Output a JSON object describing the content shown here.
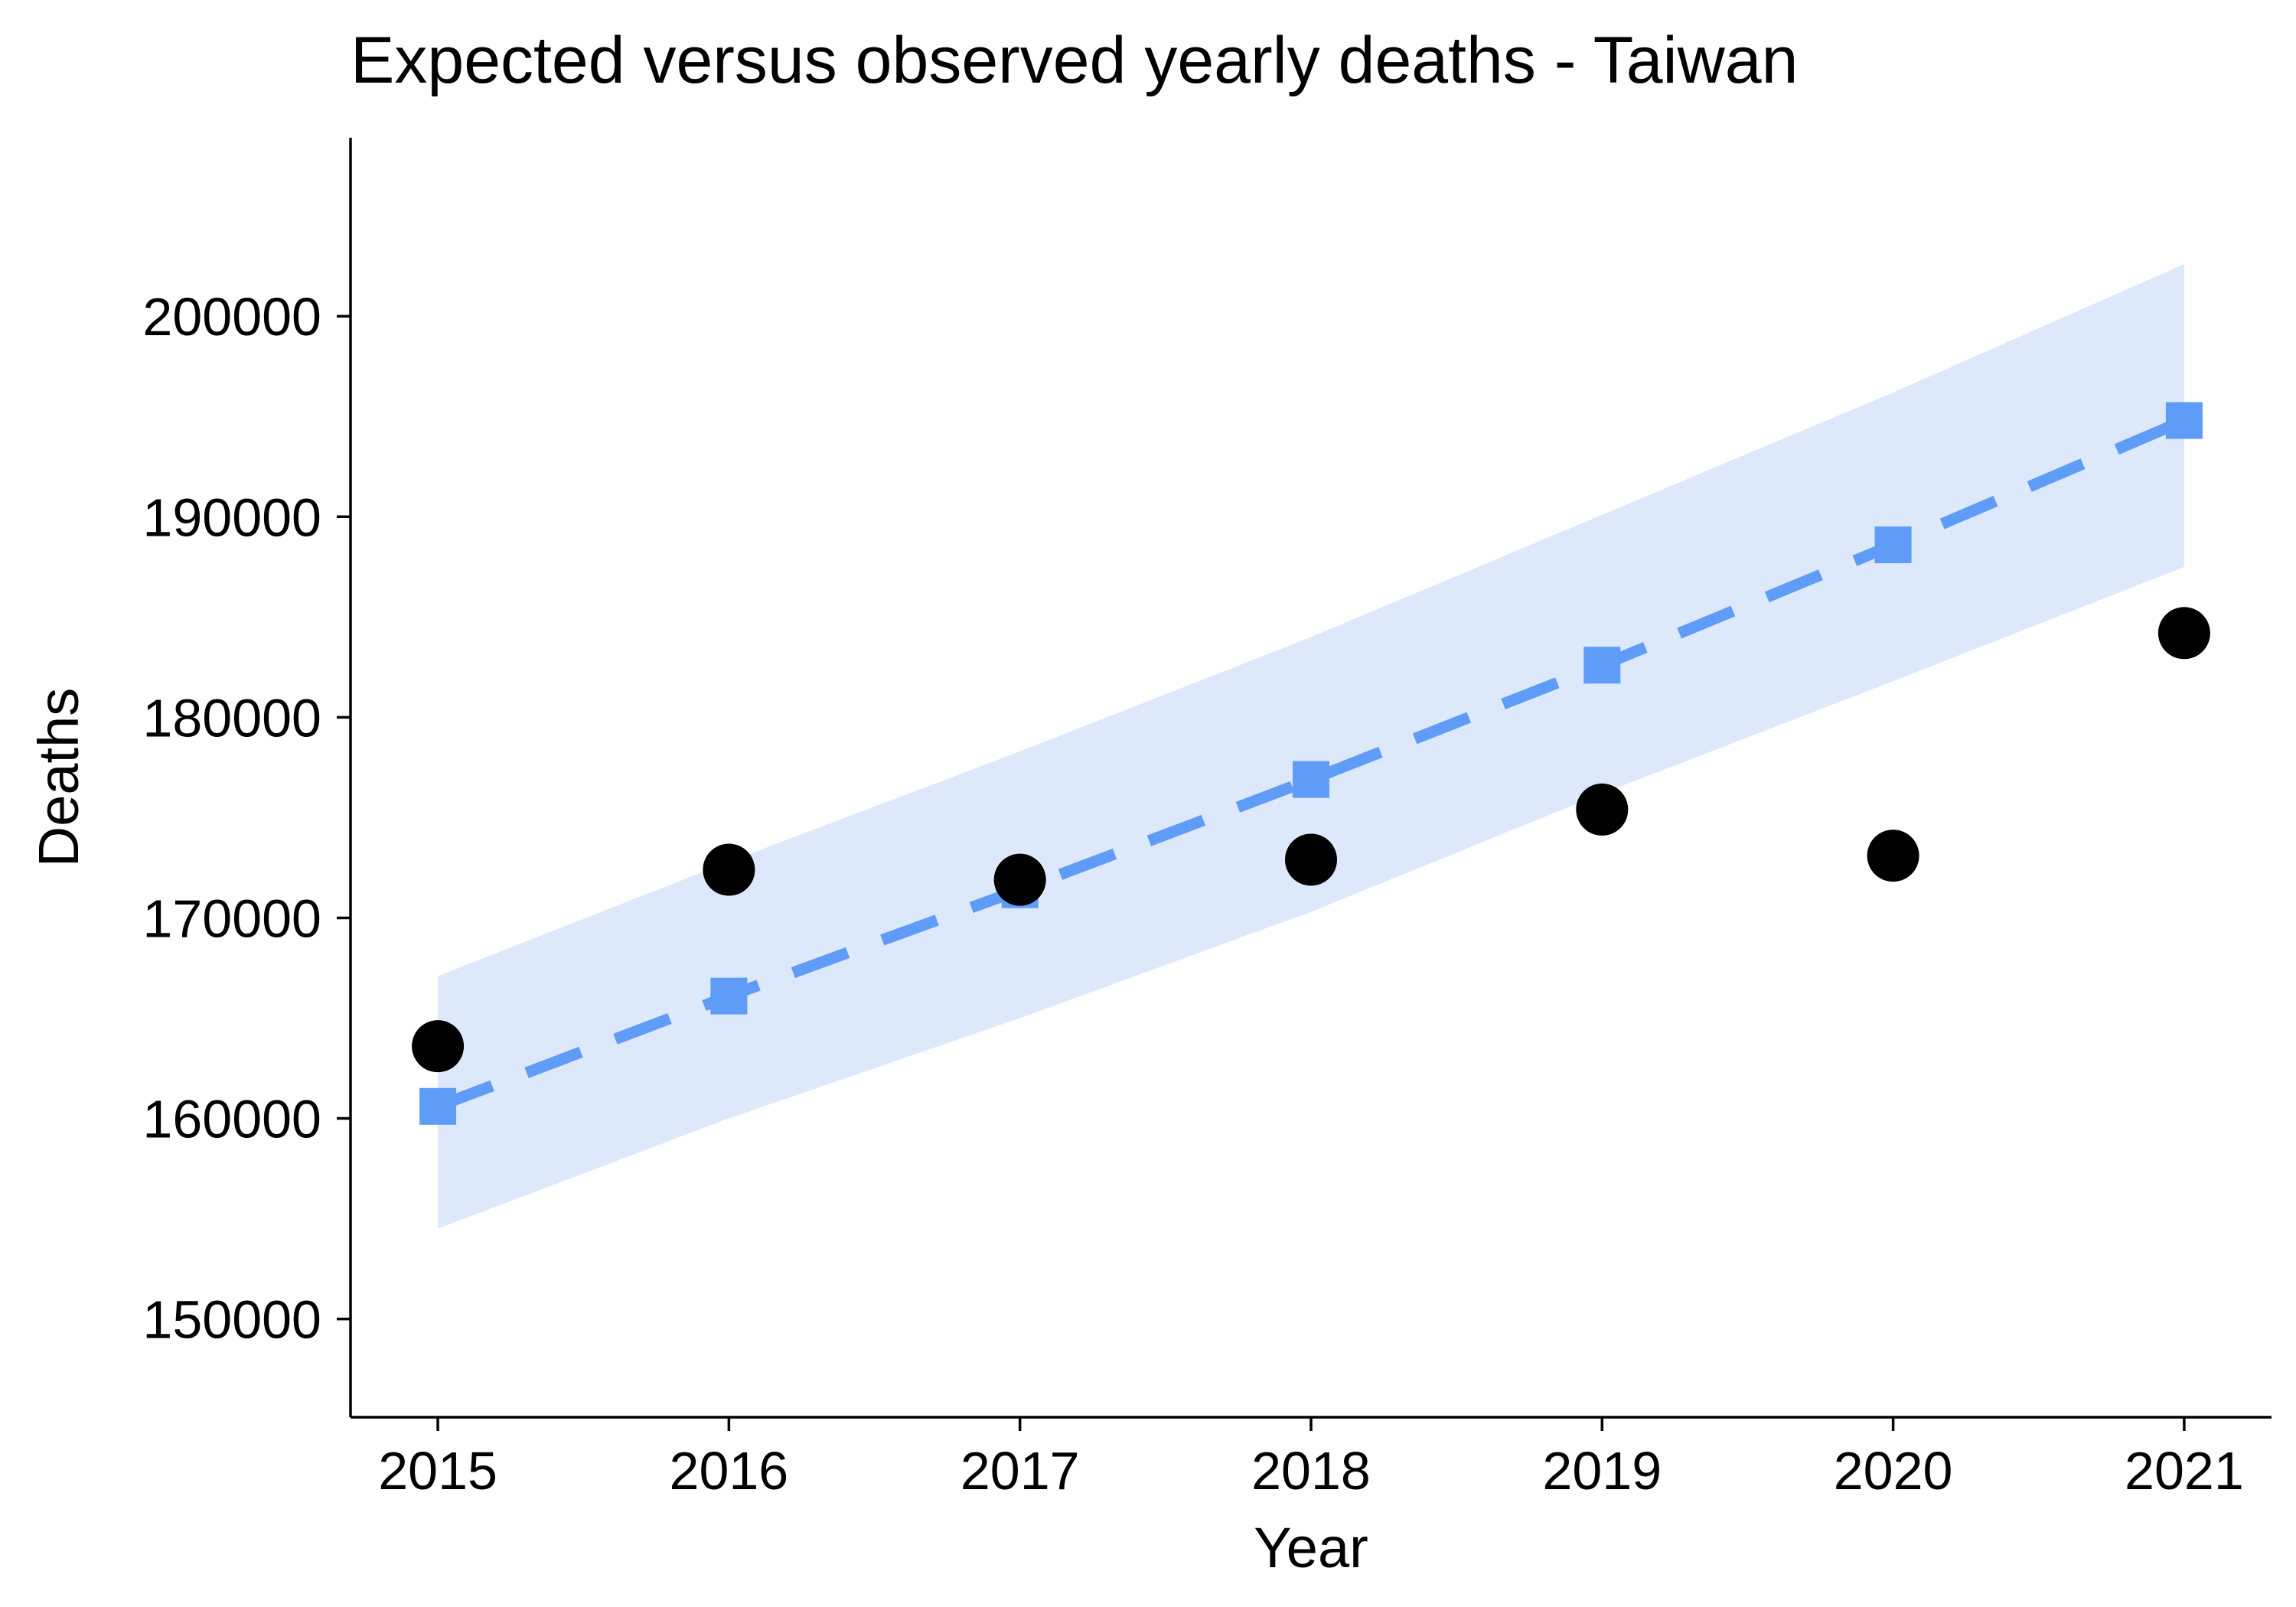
{
  "chart_data": {
    "type": "line",
    "title": "Expected versus observed yearly deaths - Taiwan",
    "xlabel": "Year",
    "ylabel": "Deaths",
    "x": [
      2015,
      2016,
      2017,
      2018,
      2019,
      2020,
      2021
    ],
    "xlim": [
      2014.7,
      2021.3
    ],
    "ylim": [
      145100,
      208900
    ],
    "yticks": [
      150000,
      160000,
      170000,
      180000,
      190000,
      200000
    ],
    "ytick_labels": [
      "150000",
      "160000",
      "170000",
      "180000",
      "190000",
      "200000"
    ],
    "xtick_labels": [
      "2015",
      "2016",
      "2017",
      "2018",
      "2019",
      "2020",
      "2021"
    ],
    "grid": false,
    "legend": "none",
    "series": [
      {
        "kind": "band",
        "color": "#dde9fb",
        "lower": [
          154500,
          160000,
          165000,
          170300,
          176200,
          181800,
          187500
        ],
        "upper": [
          167100,
          172800,
          178300,
          184000,
          190100,
          196200,
          202600
        ]
      },
      {
        "kind": "dashed-line-square-markers",
        "color": "#5e9cf7",
        "values": [
          160600,
          166100,
          171400,
          176900,
          182600,
          188600,
          194800
        ]
      },
      {
        "kind": "points",
        "color": "#000000",
        "values": [
          163600,
          172400,
          171900,
          172900,
          175400,
          173100,
          184200
        ]
      }
    ]
  }
}
